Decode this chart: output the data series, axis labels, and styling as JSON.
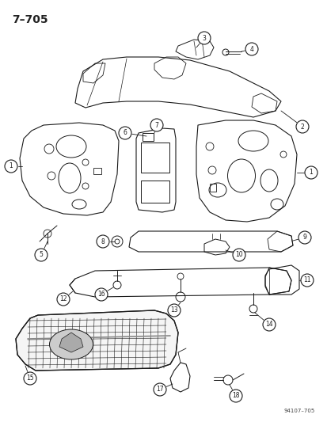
{
  "title": "7–705",
  "footer": "94107–705",
  "bg": "#ffffff",
  "lc": "#1a1a1a",
  "fig_w": 4.14,
  "fig_h": 5.33,
  "dpi": 100
}
